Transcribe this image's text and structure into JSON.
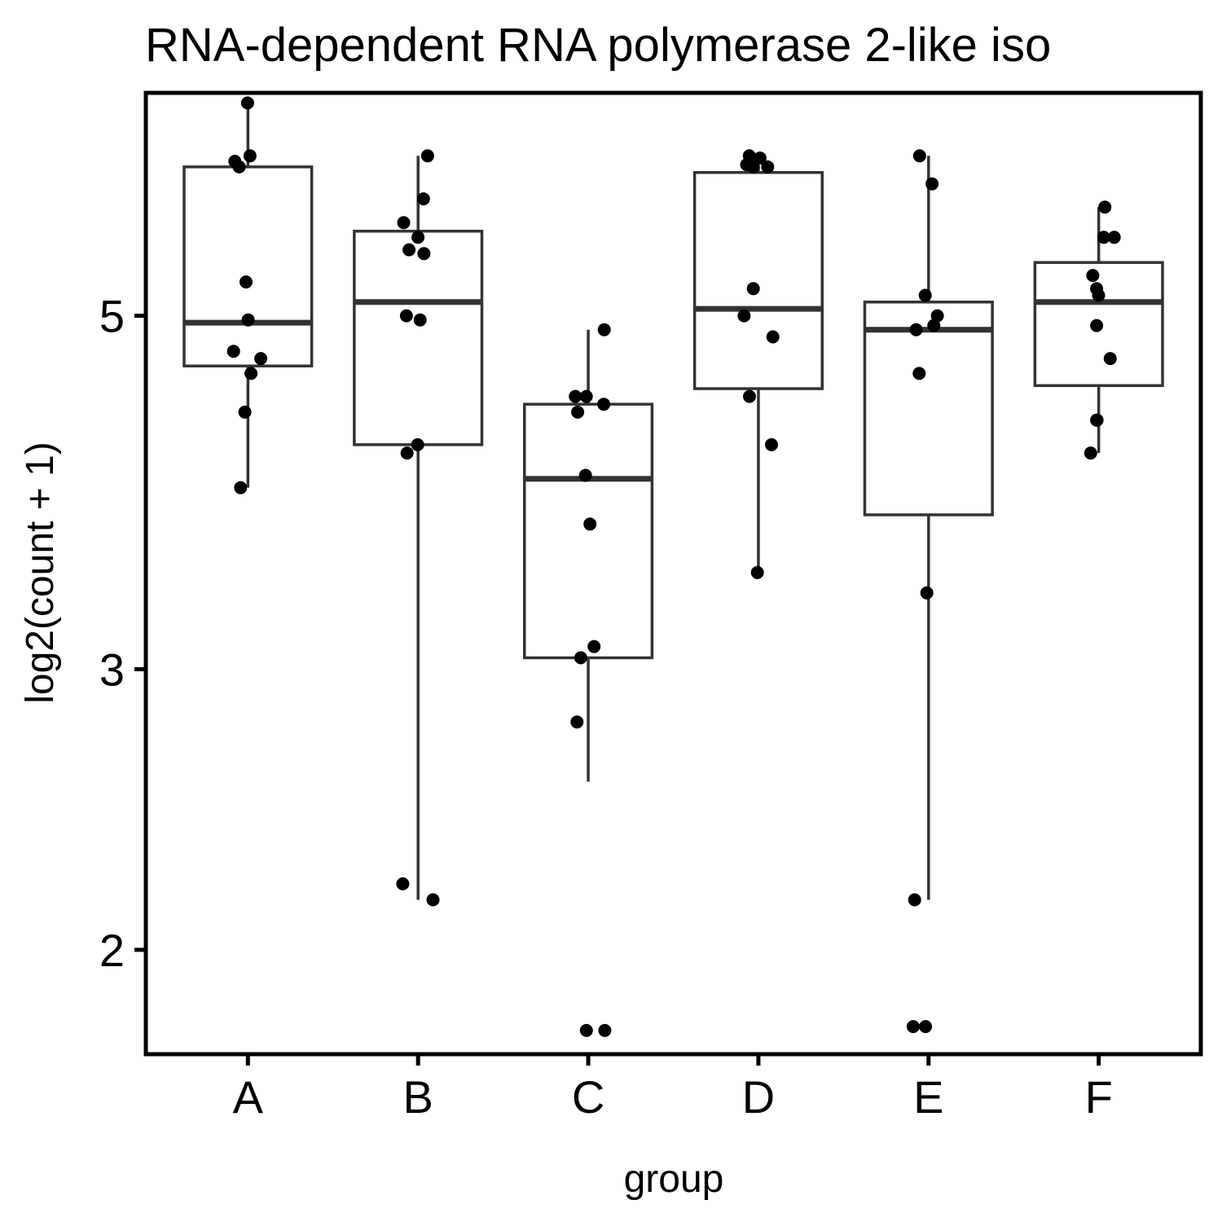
{
  "chart_data": {
    "type": "boxplot",
    "title": "RNA-dependent RNA polymerase 2-like iso",
    "xlabel": "group",
    "ylabel": "log2(count + 1)",
    "y_scale": "log",
    "ylim": [
      1.72,
      6.9
    ],
    "y_ticks": [
      2,
      3,
      5
    ],
    "categories": [
      "A",
      "B",
      "C",
      "D",
      "E",
      "F"
    ],
    "boxes": [
      {
        "group": "A",
        "lower_whisker": 3.9,
        "q1": 4.65,
        "median": 4.95,
        "q3": 6.2,
        "upper_whisker": 6.8
      },
      {
        "group": "B",
        "lower_whisker": 2.15,
        "q1": 4.15,
        "median": 5.1,
        "q3": 5.65,
        "upper_whisker": 6.3
      },
      {
        "group": "C",
        "lower_whisker": 2.55,
        "q1": 3.05,
        "median": 3.95,
        "q3": 4.4,
        "upper_whisker": 4.9
      },
      {
        "group": "D",
        "lower_whisker": 3.45,
        "q1": 4.5,
        "median": 5.05,
        "q3": 6.15,
        "upper_whisker": 6.2
      },
      {
        "group": "E",
        "lower_whisker": 2.15,
        "q1": 3.75,
        "median": 4.9,
        "q3": 5.1,
        "upper_whisker": 6.3
      },
      {
        "group": "F",
        "lower_whisker": 4.1,
        "q1": 4.52,
        "median": 5.1,
        "q3": 5.4,
        "upper_whisker": 5.85
      }
    ],
    "points": [
      {
        "group": "A",
        "values": [
          6.8,
          6.3,
          6.25,
          6.2,
          5.25,
          4.97,
          4.75,
          4.7,
          4.6,
          4.35,
          3.9
        ]
      },
      {
        "group": "B",
        "values": [
          6.3,
          5.92,
          5.72,
          5.6,
          5.5,
          5.47,
          5.0,
          4.97,
          4.15,
          4.1,
          2.2,
          2.15
        ]
      },
      {
        "group": "C",
        "values": [
          4.9,
          4.45,
          4.45,
          4.4,
          4.35,
          3.97,
          3.7,
          3.1,
          3.05,
          2.78,
          1.78,
          1.78
        ]
      },
      {
        "group": "D",
        "values": [
          6.3,
          6.28,
          6.25,
          6.22,
          6.2,
          6.2,
          5.2,
          5.0,
          4.85,
          4.45,
          4.15,
          3.45
        ]
      },
      {
        "group": "E",
        "values": [
          6.3,
          6.05,
          5.15,
          5.0,
          4.93,
          4.9,
          4.6,
          3.35,
          2.15,
          1.79,
          1.79
        ]
      },
      {
        "group": "F",
        "values": [
          5.85,
          5.6,
          5.6,
          5.3,
          5.2,
          5.15,
          4.93,
          4.7,
          4.3,
          4.3,
          4.1
        ]
      }
    ],
    "grid": false,
    "legend": "none"
  }
}
